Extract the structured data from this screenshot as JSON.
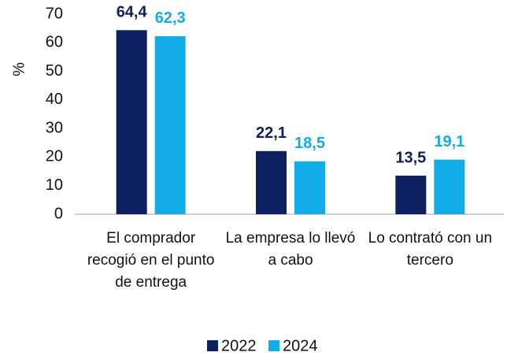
{
  "chart_data": {
    "type": "bar",
    "y_label": "%",
    "categories": [
      "El comprador recogió en el punto de entrega",
      "La empresa lo llevó a cabo",
      "Lo contrató con un tercero"
    ],
    "series": [
      {
        "name": "2022",
        "color": "#0d2161",
        "values": [
          64.4,
          22.1,
          13.5
        ],
        "value_labels": [
          "64,4",
          "22,1",
          "13,5"
        ]
      },
      {
        "name": "2024",
        "color": "#12ade8",
        "values": [
          62.3,
          18.5,
          19.1
        ],
        "value_labels": [
          "62,3",
          "18,5",
          "19,1"
        ]
      }
    ],
    "ylim": [
      0,
      70
    ],
    "yticks": [
      0,
      10,
      20,
      30,
      40,
      50,
      60,
      70
    ],
    "grid": false,
    "legend": "bottom"
  }
}
